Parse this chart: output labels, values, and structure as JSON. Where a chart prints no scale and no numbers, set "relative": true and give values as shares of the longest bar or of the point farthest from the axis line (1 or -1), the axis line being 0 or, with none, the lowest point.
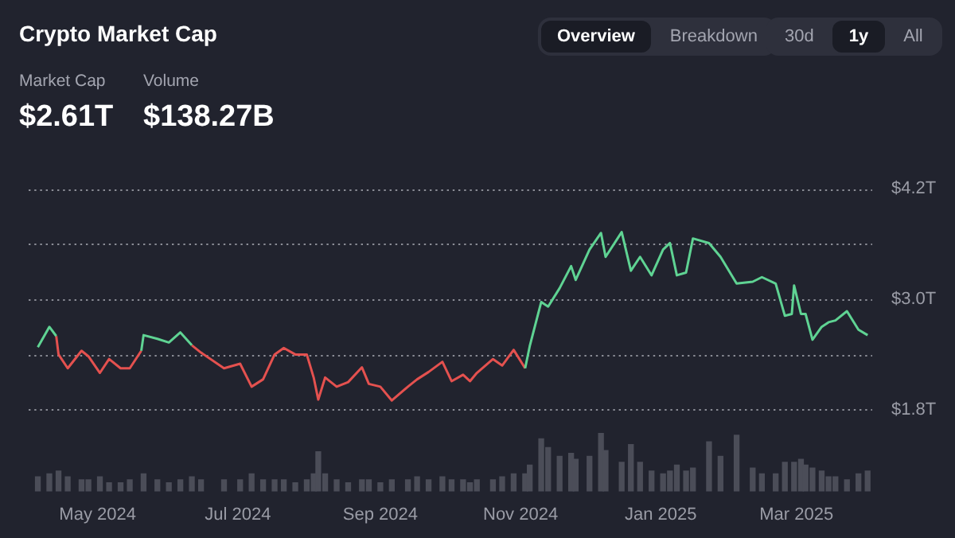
{
  "chart_data": [
    {
      "type": "line",
      "title": "Crypto Market Cap",
      "annotations": [
        "Market Cap",
        "$2.61T",
        "Volume",
        "$138.27B",
        "Overview",
        "Breakdown",
        "30d",
        "1y",
        "All"
      ],
      "x": [
        "2024-04-05",
        "2024-04-10",
        "2024-04-13",
        "2024-04-14",
        "2024-04-18",
        "2024-04-24",
        "2024-04-27",
        "2024-05-02",
        "2024-05-06",
        "2024-05-11",
        "2024-05-15",
        "2024-05-20",
        "2024-05-21",
        "2024-05-27",
        "2024-06-01",
        "2024-06-06",
        "2024-06-11",
        "2024-06-15",
        "2024-06-25",
        "2024-07-02",
        "2024-07-07",
        "2024-07-12",
        "2024-07-17",
        "2024-07-21",
        "2024-07-26",
        "2024-07-31",
        "2024-08-03",
        "2024-08-05",
        "2024-08-08",
        "2024-08-13",
        "2024-08-18",
        "2024-08-24",
        "2024-08-27",
        "2024-09-01",
        "2024-09-06",
        "2024-09-13",
        "2024-09-17",
        "2024-09-22",
        "2024-09-28",
        "2024-10-02",
        "2024-10-07",
        "2024-10-10",
        "2024-10-13",
        "2024-10-20",
        "2024-10-24",
        "2024-10-29",
        "2024-11-03",
        "2024-11-05",
        "2024-11-10",
        "2024-11-13",
        "2024-11-18",
        "2024-11-23",
        "2024-11-25",
        "2024-12-01",
        "2024-12-06",
        "2024-12-08",
        "2024-12-15",
        "2024-12-19",
        "2024-12-23",
        "2024-12-28",
        "2025-01-02",
        "2025-01-05",
        "2025-01-08",
        "2025-01-12",
        "2025-01-15",
        "2025-01-22",
        "2025-01-27",
        "2025-02-03",
        "2025-02-10",
        "2025-02-14",
        "2025-02-20",
        "2025-02-24",
        "2025-02-27",
        "2025-02-28",
        "2025-03-03",
        "2025-03-05",
        "2025-03-08",
        "2025-03-12",
        "2025-03-15",
        "2025-03-18",
        "2025-03-23",
        "2025-03-28",
        "2025-04-01"
      ],
      "series": [
        {
          "color": "#5fd393",
          "values": [
            2.48,
            2.7,
            2.6,
            null,
            null,
            null,
            null,
            null,
            null,
            null,
            null,
            2.44,
            2.61,
            2.57,
            2.53,
            2.64,
            2.5,
            null,
            null,
            null,
            null,
            null,
            null,
            null,
            null,
            null,
            null,
            null,
            null,
            null,
            null,
            null,
            null,
            null,
            null,
            null,
            null,
            null,
            null,
            null,
            null,
            null,
            null,
            null,
            null,
            null,
            2.25,
            2.49,
            2.97,
            2.92,
            3.12,
            3.36,
            3.21,
            3.54,
            3.72,
            3.46,
            3.73,
            3.31,
            3.46,
            3.26,
            3.54,
            3.61,
            3.26,
            3.29,
            3.66,
            3.61,
            3.46,
            3.17,
            3.19,
            3.24,
            3.17,
            2.82,
            2.84,
            3.15,
            2.84,
            2.84,
            2.56,
            2.7,
            2.75,
            2.77,
            2.87,
            2.67,
            2.61
          ]
        },
        {
          "color": "#e4514f",
          "values": [
            null,
            null,
            2.6,
            2.4,
            2.25,
            2.44,
            2.38,
            2.2,
            2.35,
            2.25,
            2.25,
            2.44,
            null,
            null,
            null,
            null,
            2.5,
            2.42,
            2.25,
            2.3,
            2.05,
            2.13,
            2.4,
            2.47,
            2.4,
            2.4,
            2.15,
            1.91,
            2.15,
            2.05,
            2.1,
            2.26,
            2.08,
            2.05,
            1.9,
            2.05,
            2.13,
            2.21,
            2.32,
            2.11,
            2.18,
            2.11,
            2.2,
            2.35,
            2.28,
            2.45,
            2.25,
            null,
            null,
            null,
            null,
            null,
            null,
            null,
            null,
            null,
            null,
            null,
            null,
            null,
            null,
            null,
            null,
            null,
            null,
            null,
            null,
            null,
            null,
            null,
            null,
            null,
            null,
            null,
            null,
            null,
            null,
            null,
            null,
            null,
            null,
            null,
            null
          ]
        }
      ],
      "xlim": [
        "2024-04-01",
        "2025-04-03"
      ],
      "ylim": [
        1.8,
        4.2
      ],
      "yticks": [
        {
          "value": 1.8,
          "label": "$1.8T"
        },
        {
          "value": 2.4,
          "label": null
        },
        {
          "value": 3.0,
          "label": "$3.0T"
        },
        {
          "value": 3.6,
          "label": null
        },
        {
          "value": 4.2,
          "label": "$4.2T"
        }
      ],
      "grid": "y",
      "tick_labels": "y",
      "marker": "none",
      "line_style": "solid"
    },
    {
      "type": "bar",
      "relative": true,
      "color": "#4b4d58",
      "tick_labels": "x",
      "x": [
        "2024-04-05",
        "2024-04-10",
        "2024-04-13",
        "2024-04-14",
        "2024-04-18",
        "2024-04-24",
        "2024-04-27",
        "2024-05-02",
        "2024-05-06",
        "2024-05-11",
        "2024-05-15",
        "2024-05-20",
        "2024-05-21",
        "2024-05-27",
        "2024-06-01",
        "2024-06-06",
        "2024-06-11",
        "2024-06-15",
        "2024-06-25",
        "2024-07-02",
        "2024-07-07",
        "2024-07-12",
        "2024-07-17",
        "2024-07-21",
        "2024-07-26",
        "2024-07-31",
        "2024-08-03",
        "2024-08-05",
        "2024-08-08",
        "2024-08-13",
        "2024-08-18",
        "2024-08-24",
        "2024-08-27",
        "2024-09-01",
        "2024-09-06",
        "2024-09-13",
        "2024-09-17",
        "2024-09-22",
        "2024-09-28",
        "2024-10-02",
        "2024-10-07",
        "2024-10-10",
        "2024-10-13",
        "2024-10-20",
        "2024-10-24",
        "2024-10-29",
        "2024-11-03",
        "2024-11-05",
        "2024-11-10",
        "2024-11-13",
        "2024-11-18",
        "2024-11-23",
        "2024-11-25",
        "2024-12-01",
        "2024-12-06",
        "2024-12-08",
        "2024-12-15",
        "2024-12-19",
        "2024-12-23",
        "2024-12-28",
        "2025-01-02",
        "2025-01-05",
        "2025-01-08",
        "2025-01-12",
        "2025-01-15",
        "2025-01-22",
        "2025-01-27",
        "2025-02-03",
        "2025-02-10",
        "2025-02-14",
        "2025-02-20",
        "2025-02-24",
        "2025-02-27",
        "2025-02-28",
        "2025-03-03",
        "2025-03-05",
        "2025-03-08",
        "2025-03-12",
        "2025-03-15",
        "2025-03-18",
        "2025-03-23",
        "2025-03-28",
        "2025-04-01"
      ],
      "values": [
        0.25,
        0.3,
        null,
        0.35,
        0.25,
        0.2,
        0.2,
        0.25,
        0.15,
        0.15,
        0.2,
        null,
        0.3,
        0.2,
        0.15,
        0.2,
        0.25,
        0.2,
        0.2,
        0.2,
        0.3,
        0.2,
        0.2,
        0.2,
        0.15,
        0.2,
        0.3,
        0.68,
        0.3,
        0.2,
        0.15,
        0.2,
        0.2,
        0.15,
        0.2,
        0.2,
        0.25,
        0.2,
        0.25,
        0.2,
        0.2,
        0.15,
        0.2,
        0.2,
        0.25,
        0.3,
        0.3,
        0.45,
        0.9,
        0.75,
        0.6,
        0.65,
        0.55,
        0.6,
        1,
        0.7,
        0.5,
        0.8,
        0.5,
        0.35,
        0.3,
        0.35,
        0.45,
        0.35,
        0.4,
        0.85,
        0.6,
        0.96,
        0.4,
        0.3,
        0.3,
        0.5,
        null,
        0.5,
        0.55,
        0.45,
        0.4,
        0.35,
        0.25,
        0.25,
        0.2,
        0.3,
        0.35
      ],
      "xlim": [
        "2024-04-01",
        "2025-04-03"
      ],
      "xticks": [
        {
          "value": "2024-05-01",
          "label": "May 2024"
        },
        {
          "value": "2024-07-01",
          "label": "Jul 2024"
        },
        {
          "value": "2024-09-01",
          "label": "Sep 2024"
        },
        {
          "value": "2024-11-01",
          "label": "Nov 2024"
        },
        {
          "value": "2025-01-01",
          "label": "Jan 2025"
        },
        {
          "value": "2025-03-01",
          "label": "Mar 2025"
        }
      ]
    }
  ]
}
